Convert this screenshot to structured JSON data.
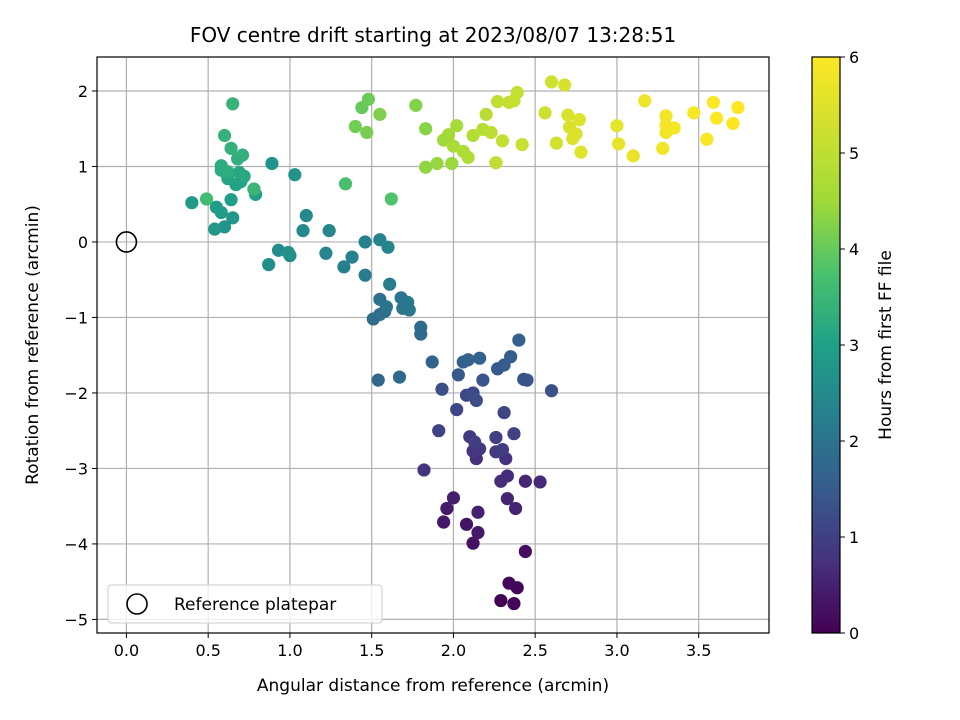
{
  "chart_data": {
    "type": "scatter",
    "title": "FOV centre drift starting at 2023/08/07 13:28:51",
    "xlabel": "Angular distance from reference (arcmin)",
    "ylabel": "Rotation from reference (arcmin)",
    "xlim": [
      -0.18,
      3.93
    ],
    "ylim": [
      -5.18,
      2.45
    ],
    "xticks": [
      0.0,
      0.5,
      1.0,
      1.5,
      2.0,
      2.5,
      3.0,
      3.5
    ],
    "xtick_labels": [
      "0.0",
      "0.5",
      "1.0",
      "1.5",
      "2.0",
      "2.5",
      "3.0",
      "3.5"
    ],
    "yticks": [
      -5,
      -4,
      -3,
      -2,
      -1,
      0,
      1,
      2
    ],
    "ytick_labels": [
      "−5",
      "−4",
      "−3",
      "−2",
      "−1",
      "0",
      "1",
      "2"
    ],
    "grid": true,
    "colormap": "viridis",
    "colorbar": {
      "label": "Hours from first FF file",
      "range": [
        0,
        6
      ],
      "ticks": [
        0,
        1,
        2,
        3,
        4,
        5,
        6
      ],
      "tick_labels": [
        "0",
        "1",
        "2",
        "3",
        "4",
        "5",
        "6"
      ]
    },
    "legend": {
      "position": "lower-left",
      "entries": [
        {
          "label": "Reference platepar",
          "marker": "open-circle"
        }
      ]
    },
    "reference_point": {
      "x": 0.0,
      "y": 0.0
    },
    "points": [
      {
        "x": 2.29,
        "y": -4.75,
        "t": 0.02
      },
      {
        "x": 2.37,
        "y": -4.79,
        "t": 0.05
      },
      {
        "x": 2.34,
        "y": -4.52,
        "t": 0.08
      },
      {
        "x": 2.39,
        "y": -4.58,
        "t": 0.11
      },
      {
        "x": 2.44,
        "y": -4.1,
        "t": 0.2
      },
      {
        "x": 2.12,
        "y": -3.99,
        "t": 0.25
      },
      {
        "x": 2.08,
        "y": -3.74,
        "t": 0.3
      },
      {
        "x": 1.94,
        "y": -3.71,
        "t": 0.33
      },
      {
        "x": 2.15,
        "y": -3.85,
        "t": 0.36
      },
      {
        "x": 1.96,
        "y": -3.53,
        "t": 0.4
      },
      {
        "x": 2.0,
        "y": -3.39,
        "t": 0.44
      },
      {
        "x": 2.15,
        "y": -3.58,
        "t": 0.48
      },
      {
        "x": 2.38,
        "y": -3.53,
        "t": 0.52
      },
      {
        "x": 2.33,
        "y": -3.4,
        "t": 0.55
      },
      {
        "x": 2.44,
        "y": -3.17,
        "t": 0.58
      },
      {
        "x": 2.53,
        "y": -3.18,
        "t": 0.62
      },
      {
        "x": 2.29,
        "y": -3.17,
        "t": 0.66
      },
      {
        "x": 2.33,
        "y": -3.1,
        "t": 0.68
      },
      {
        "x": 2.14,
        "y": -2.87,
        "t": 0.72
      },
      {
        "x": 2.32,
        "y": -2.87,
        "t": 0.75
      },
      {
        "x": 1.82,
        "y": -3.02,
        "t": 0.78
      },
      {
        "x": 2.12,
        "y": -2.77,
        "t": 0.82
      },
      {
        "x": 2.16,
        "y": -2.74,
        "t": 0.85
      },
      {
        "x": 2.1,
        "y": -2.58,
        "t": 0.88
      },
      {
        "x": 2.26,
        "y": -2.78,
        "t": 0.91
      },
      {
        "x": 2.3,
        "y": -2.75,
        "t": 0.94
      },
      {
        "x": 2.13,
        "y": -2.65,
        "t": 0.97
      },
      {
        "x": 2.26,
        "y": -2.59,
        "t": 1.0
      },
      {
        "x": 2.37,
        "y": -2.54,
        "t": 1.03
      },
      {
        "x": 1.91,
        "y": -2.5,
        "t": 1.06
      },
      {
        "x": 2.31,
        "y": -2.26,
        "t": 1.1
      },
      {
        "x": 2.02,
        "y": -2.22,
        "t": 1.13
      },
      {
        "x": 2.08,
        "y": -2.03,
        "t": 1.16
      },
      {
        "x": 2.12,
        "y": -2.0,
        "t": 1.2
      },
      {
        "x": 2.14,
        "y": -2.1,
        "t": 1.23
      },
      {
        "x": 1.93,
        "y": -1.95,
        "t": 1.26
      },
      {
        "x": 2.6,
        "y": -1.97,
        "t": 1.3
      },
      {
        "x": 2.43,
        "y": -1.82,
        "t": 1.33
      },
      {
        "x": 2.45,
        "y": -1.83,
        "t": 1.36
      },
      {
        "x": 2.18,
        "y": -1.83,
        "t": 1.4
      },
      {
        "x": 2.03,
        "y": -1.76,
        "t": 1.44
      },
      {
        "x": 2.27,
        "y": -1.68,
        "t": 1.47
      },
      {
        "x": 2.31,
        "y": -1.63,
        "t": 1.5
      },
      {
        "x": 2.35,
        "y": -1.52,
        "t": 1.53
      },
      {
        "x": 2.06,
        "y": -1.59,
        "t": 1.56
      },
      {
        "x": 2.09,
        "y": -1.56,
        "t": 1.6
      },
      {
        "x": 2.16,
        "y": -1.54,
        "t": 1.63
      },
      {
        "x": 2.4,
        "y": -1.3,
        "t": 1.66
      },
      {
        "x": 1.87,
        "y": -1.59,
        "t": 1.7
      },
      {
        "x": 1.54,
        "y": -1.83,
        "t": 1.73
      },
      {
        "x": 1.67,
        "y": -1.79,
        "t": 1.76
      },
      {
        "x": 1.8,
        "y": -1.13,
        "t": 1.8
      },
      {
        "x": 1.8,
        "y": -1.22,
        "t": 1.83
      },
      {
        "x": 1.51,
        "y": -1.02,
        "t": 1.86
      },
      {
        "x": 1.55,
        "y": -0.96,
        "t": 1.9
      },
      {
        "x": 1.58,
        "y": -0.92,
        "t": 1.93
      },
      {
        "x": 1.55,
        "y": -0.76,
        "t": 1.96
      },
      {
        "x": 1.59,
        "y": -0.86,
        "t": 2.0
      },
      {
        "x": 1.68,
        "y": -0.74,
        "t": 2.03
      },
      {
        "x": 1.69,
        "y": -0.88,
        "t": 2.06
      },
      {
        "x": 1.73,
        "y": -0.9,
        "t": 2.1
      },
      {
        "x": 1.72,
        "y": -0.8,
        "t": 2.13
      },
      {
        "x": 1.61,
        "y": -0.56,
        "t": 2.16
      },
      {
        "x": 1.46,
        "y": -0.44,
        "t": 2.2
      },
      {
        "x": 1.33,
        "y": -0.33,
        "t": 2.23
      },
      {
        "x": 1.38,
        "y": -0.2,
        "t": 2.27
      },
      {
        "x": 1.46,
        "y": 0.0,
        "t": 2.3
      },
      {
        "x": 1.55,
        "y": 0.03,
        "t": 2.33
      },
      {
        "x": 1.6,
        "y": -0.07,
        "t": 2.36
      },
      {
        "x": 1.22,
        "y": -0.15,
        "t": 2.4
      },
      {
        "x": 1.24,
        "y": 0.15,
        "t": 2.43
      },
      {
        "x": 1.1,
        "y": 0.35,
        "t": 2.46
      },
      {
        "x": 1.08,
        "y": 0.15,
        "t": 2.5
      },
      {
        "x": 1.0,
        "y": -0.18,
        "t": 2.53
      },
      {
        "x": 0.93,
        "y": -0.11,
        "t": 2.56
      },
      {
        "x": 0.87,
        "y": -0.3,
        "t": 2.6
      },
      {
        "x": 0.99,
        "y": -0.14,
        "t": 2.63
      },
      {
        "x": 1.03,
        "y": 0.89,
        "t": 2.66
      },
      {
        "x": 0.89,
        "y": 1.04,
        "t": 2.7
      },
      {
        "x": 0.6,
        "y": 0.2,
        "t": 2.73
      },
      {
        "x": 0.65,
        "y": 0.32,
        "t": 2.76
      },
      {
        "x": 0.54,
        "y": 0.17,
        "t": 2.8
      },
      {
        "x": 0.4,
        "y": 0.52,
        "t": 2.83
      },
      {
        "x": 0.55,
        "y": 0.46,
        "t": 2.86
      },
      {
        "x": 0.58,
        "y": 0.39,
        "t": 2.9
      },
      {
        "x": 0.64,
        "y": 0.56,
        "t": 2.93
      },
      {
        "x": 0.79,
        "y": 0.63,
        "t": 2.96
      },
      {
        "x": 0.78,
        "y": 0.7,
        "t": 3.0
      },
      {
        "x": 0.67,
        "y": 0.76,
        "t": 3.03
      },
      {
        "x": 0.7,
        "y": 0.8,
        "t": 3.06
      },
      {
        "x": 0.62,
        "y": 0.84,
        "t": 3.1
      },
      {
        "x": 0.69,
        "y": 0.92,
        "t": 3.13
      },
      {
        "x": 0.72,
        "y": 0.87,
        "t": 3.16
      },
      {
        "x": 0.58,
        "y": 0.95,
        "t": 3.2
      },
      {
        "x": 0.58,
        "y": 1.01,
        "t": 3.23
      },
      {
        "x": 0.62,
        "y": 0.93,
        "t": 3.26
      },
      {
        "x": 0.68,
        "y": 1.1,
        "t": 3.3
      },
      {
        "x": 0.71,
        "y": 1.15,
        "t": 3.33
      },
      {
        "x": 0.64,
        "y": 1.24,
        "t": 3.36
      },
      {
        "x": 0.6,
        "y": 1.41,
        "t": 3.4
      },
      {
        "x": 0.65,
        "y": 1.83,
        "t": 3.43
      },
      {
        "x": 0.78,
        "y": 0.7,
        "t": 3.5
      },
      {
        "x": 0.49,
        "y": 0.57,
        "t": 3.6
      },
      {
        "x": 1.34,
        "y": 0.77,
        "t": 3.7
      },
      {
        "x": 1.62,
        "y": 0.57,
        "t": 3.8
      },
      {
        "x": 1.44,
        "y": 1.78,
        "t": 4.0
      },
      {
        "x": 1.48,
        "y": 1.89,
        "t": 4.05
      },
      {
        "x": 1.4,
        "y": 1.53,
        "t": 4.1
      },
      {
        "x": 1.47,
        "y": 1.45,
        "t": 4.15
      },
      {
        "x": 1.55,
        "y": 1.69,
        "t": 4.2
      },
      {
        "x": 1.77,
        "y": 1.81,
        "t": 4.25
      },
      {
        "x": 1.83,
        "y": 1.5,
        "t": 4.3
      },
      {
        "x": 1.83,
        "y": 0.99,
        "t": 4.35
      },
      {
        "x": 1.9,
        "y": 1.04,
        "t": 4.4
      },
      {
        "x": 1.99,
        "y": 1.04,
        "t": 4.45
      },
      {
        "x": 1.94,
        "y": 1.35,
        "t": 4.5
      },
      {
        "x": 1.97,
        "y": 1.42,
        "t": 4.55
      },
      {
        "x": 2.02,
        "y": 1.54,
        "t": 4.6
      },
      {
        "x": 2.0,
        "y": 1.27,
        "t": 4.65
      },
      {
        "x": 2.06,
        "y": 1.2,
        "t": 4.7
      },
      {
        "x": 2.09,
        "y": 1.12,
        "t": 4.75
      },
      {
        "x": 2.12,
        "y": 1.41,
        "t": 4.8
      },
      {
        "x": 2.18,
        "y": 1.49,
        "t": 4.85
      },
      {
        "x": 2.2,
        "y": 1.69,
        "t": 4.9
      },
      {
        "x": 2.23,
        "y": 1.45,
        "t": 4.95
      },
      {
        "x": 2.26,
        "y": 1.05,
        "t": 5.0
      },
      {
        "x": 2.27,
        "y": 1.86,
        "t": 5.0
      },
      {
        "x": 2.3,
        "y": 1.34,
        "t": 5.05
      },
      {
        "x": 2.34,
        "y": 1.85,
        "t": 5.05
      },
      {
        "x": 2.37,
        "y": 1.87,
        "t": 5.1
      },
      {
        "x": 2.39,
        "y": 1.98,
        "t": 5.1
      },
      {
        "x": 2.42,
        "y": 1.29,
        "t": 5.15
      },
      {
        "x": 2.56,
        "y": 1.71,
        "t": 5.2
      },
      {
        "x": 2.6,
        "y": 2.12,
        "t": 5.25
      },
      {
        "x": 2.63,
        "y": 1.31,
        "t": 5.3
      },
      {
        "x": 2.68,
        "y": 2.08,
        "t": 5.35
      },
      {
        "x": 2.7,
        "y": 1.68,
        "t": 5.4
      },
      {
        "x": 2.71,
        "y": 1.52,
        "t": 5.4
      },
      {
        "x": 2.73,
        "y": 1.37,
        "t": 5.45
      },
      {
        "x": 2.75,
        "y": 1.43,
        "t": 5.45
      },
      {
        "x": 2.77,
        "y": 1.62,
        "t": 5.5
      },
      {
        "x": 2.78,
        "y": 1.19,
        "t": 5.5
      },
      {
        "x": 3.0,
        "y": 1.54,
        "t": 5.6
      },
      {
        "x": 3.01,
        "y": 1.3,
        "t": 5.65
      },
      {
        "x": 3.1,
        "y": 1.14,
        "t": 5.7
      },
      {
        "x": 3.17,
        "y": 1.87,
        "t": 5.75
      },
      {
        "x": 3.28,
        "y": 1.24,
        "t": 5.8
      },
      {
        "x": 3.3,
        "y": 1.45,
        "t": 5.8
      },
      {
        "x": 3.3,
        "y": 1.55,
        "t": 5.85
      },
      {
        "x": 3.3,
        "y": 1.67,
        "t": 5.85
      },
      {
        "x": 3.35,
        "y": 1.51,
        "t": 5.9
      },
      {
        "x": 3.47,
        "y": 1.71,
        "t": 5.9
      },
      {
        "x": 3.55,
        "y": 1.36,
        "t": 5.95
      },
      {
        "x": 3.59,
        "y": 1.85,
        "t": 5.95
      },
      {
        "x": 3.61,
        "y": 1.64,
        "t": 6.0
      },
      {
        "x": 3.71,
        "y": 1.57,
        "t": 6.0
      },
      {
        "x": 3.74,
        "y": 1.78,
        "t": 6.0
      }
    ]
  }
}
